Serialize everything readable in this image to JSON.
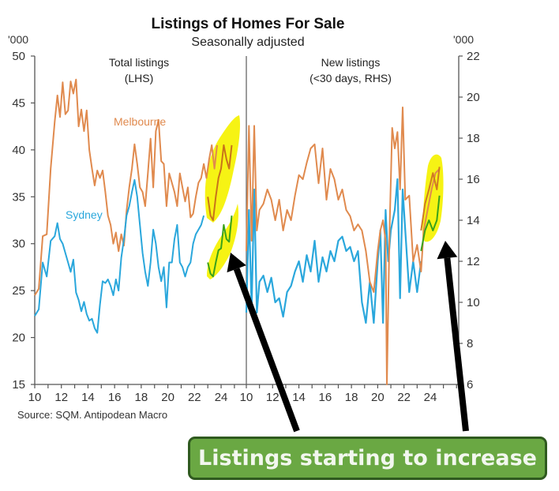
{
  "chart_data": {
    "type": "line",
    "title": "Listings of Homes For Sale",
    "subtitle": "Seasonally adjusted",
    "source": "Source: SQM. Antipodean Macro",
    "left_unit": "'000",
    "right_unit": "'000",
    "annotation": "Listings starting to increase",
    "colors": {
      "melbourne": "#e08a4e",
      "sydney": "#2aa7dc",
      "highlight_line": "#3aa21a",
      "highlight_fill": "#f5f200",
      "arrow": "#000000",
      "callout_bg": "#6aa843",
      "callout_border": "#2f5a1f"
    },
    "panels": [
      {
        "name": "Total listings",
        "label_line1": "Total listings",
        "label_line2": "(LHS)",
        "axis": "left",
        "ylim": [
          15,
          50
        ],
        "yticks": [
          15,
          20,
          25,
          30,
          35,
          40,
          45,
          50
        ],
        "xticks": [
          "10",
          "12",
          "14",
          "16",
          "18",
          "20",
          "22",
          "24"
        ],
        "series": [
          {
            "name": "Melbourne",
            "x": [
              2010.0,
              2010.3,
              2010.6,
              2010.9,
              2011.2,
              2011.5,
              2011.7,
              2011.9,
              2012.1,
              2012.3,
              2012.5,
              2012.7,
              2012.9,
              2013.1,
              2013.3,
              2013.5,
              2013.7,
              2013.9,
              2014.1,
              2014.3,
              2014.5,
              2014.7,
              2014.9,
              2015.1,
              2015.3,
              2015.5,
              2015.7,
              2015.9,
              2016.1,
              2016.3,
              2016.5,
              2016.7,
              2016.9,
              2017.1,
              2017.3,
              2017.5,
              2017.7,
              2017.9,
              2018.1,
              2018.3,
              2018.5,
              2018.7,
              2018.9,
              2019.1,
              2019.3,
              2019.5,
              2019.7,
              2019.9,
              2020.1,
              2020.3,
              2020.5,
              2020.7,
              2020.9,
              2021.1,
              2021.3,
              2021.5,
              2021.7,
              2021.9,
              2022.1,
              2022.3,
              2022.5,
              2022.7,
              2022.9,
              2023.1,
              2023.3,
              2023.5,
              2023.7,
              2023.9,
              2024.1,
              2024.3,
              2024.5,
              2024.7
            ],
            "values": [
              24.5,
              25.2,
              30.8,
              31.0,
              38.0,
              43.0,
              45.8,
              43.5,
              47.2,
              43.8,
              44.2,
              47.3,
              46.0,
              47.5,
              42.5,
              44.3,
              42.0,
              44.2,
              40.0,
              38.0,
              36.2,
              37.8,
              37.0,
              37.8,
              35.5,
              33.0,
              32.0,
              30.0,
              31.2,
              29.2,
              31.0,
              29.8,
              33.5,
              36.0,
              38.0,
              40.6,
              38.5,
              36.0,
              35.5,
              34.0,
              37.5,
              41.2,
              36.0,
              42.0,
              43.2,
              38.8,
              38.5,
              34.0,
              37.5,
              36.5,
              35.5,
              34.0,
              37.5,
              36.0,
              34.5,
              36.0,
              32.8,
              33.2,
              35.0,
              36.5,
              37.0,
              38.5,
              37.0,
              39.0,
              40.5,
              38.0,
              40.5,
              null,
              null,
              null,
              null,
              null
            ]
          },
          {
            "name": "Sydney",
            "x": [
              2010.0,
              2010.3,
              2010.6,
              2010.9,
              2011.2,
              2011.5,
              2011.7,
              2011.9,
              2012.1,
              2012.3,
              2012.5,
              2012.7,
              2012.9,
              2013.1,
              2013.3,
              2013.5,
              2013.7,
              2013.9,
              2014.1,
              2014.3,
              2014.5,
              2014.7,
              2014.9,
              2015.1,
              2015.3,
              2015.5,
              2015.7,
              2015.9,
              2016.1,
              2016.3,
              2016.5,
              2016.7,
              2016.9,
              2017.1,
              2017.3,
              2017.5,
              2017.7,
              2017.9,
              2018.1,
              2018.3,
              2018.5,
              2018.7,
              2018.9,
              2019.1,
              2019.3,
              2019.5,
              2019.7,
              2019.9,
              2020.1,
              2020.3,
              2020.5,
              2020.7,
              2020.9,
              2021.1,
              2021.3,
              2021.5,
              2021.7,
              2021.9,
              2022.1,
              2022.3,
              2022.5,
              2022.7,
              2022.9,
              2023.1,
              2023.3,
              2023.5,
              2023.7,
              2023.9,
              2024.1,
              2024.3,
              2024.5,
              2024.7
            ],
            "values": [
              22.3,
              23.0,
              28.0,
              26.5,
              30.3,
              30.8,
              32.2,
              30.5,
              30.0,
              29.0,
              28.0,
              27.0,
              28.3,
              24.8,
              24.0,
              22.8,
              23.8,
              22.5,
              21.8,
              22.0,
              21.0,
              20.5,
              23.5,
              26.0,
              25.8,
              26.2,
              25.5,
              24.5,
              26.2,
              25.0,
              28.5,
              30.5,
              33.0,
              34.0,
              35.5,
              36.8,
              35.0,
              32.0,
              29.0,
              27.0,
              25.5,
              28.0,
              31.5,
              30.0,
              27.5,
              26.0,
              27.5,
              23.2,
              28.0,
              28.0,
              30.5,
              32.0,
              28.0,
              27.5,
              26.5,
              27.5,
              28.0,
              30.0,
              31.0,
              31.5,
              32.0,
              33.0,
              null,
              null,
              null,
              null,
              null,
              null,
              null,
              null,
              null,
              null
            ]
          },
          {
            "name": "Melbourne (recent, highlighted)",
            "x": [
              2023.0,
              2023.2,
              2023.4,
              2023.6,
              2023.8,
              2024.0,
              2024.2,
              2024.4,
              2024.6,
              2024.8
            ],
            "values": [
              35.0,
              33.0,
              32.5,
              35.0,
              37.0,
              38.0,
              40.5,
              39.0,
              38.0,
              40.5
            ]
          },
          {
            "name": "Sydney (recent, highlighted)",
            "x": [
              2023.0,
              2023.2,
              2023.4,
              2023.6,
              2023.8,
              2024.0,
              2024.2,
              2024.4,
              2024.6,
              2024.8
            ],
            "values": [
              28.0,
              26.8,
              26.5,
              28.0,
              29.3,
              29.5,
              32.0,
              30.5,
              30.2,
              33.0
            ]
          }
        ]
      },
      {
        "name": "New listings",
        "label_line1": "New listings",
        "label_line2": "(<30 days, RHS)",
        "axis": "right",
        "ylim": [
          6,
          22
        ],
        "yticks": [
          6,
          8,
          10,
          12,
          14,
          16,
          18,
          20,
          22
        ],
        "xticks": [
          "10",
          "12",
          "14",
          "16",
          "18",
          "20",
          "22",
          "24"
        ],
        "series": [
          {
            "name": "Melbourne",
            "x": [
              2010.0,
              2010.2,
              2010.4,
              2010.6,
              2010.8,
              2011.0,
              2011.3,
              2011.6,
              2011.9,
              2012.2,
              2012.5,
              2012.8,
              2013.1,
              2013.4,
              2013.7,
              2014.0,
              2014.3,
              2014.6,
              2014.9,
              2015.2,
              2015.5,
              2015.8,
              2016.1,
              2016.4,
              2016.7,
              2017.0,
              2017.3,
              2017.6,
              2017.9,
              2018.2,
              2018.5,
              2018.8,
              2019.1,
              2019.4,
              2019.7,
              2020.0,
              2020.2,
              2020.4,
              2020.6,
              2020.7,
              2020.9,
              2021.1,
              2021.3,
              2021.5,
              2021.7,
              2021.9,
              2022.1,
              2022.4,
              2022.7,
              2023.0,
              2023.3,
              2023.5,
              2023.8,
              2024.1,
              2024.4,
              2024.7
            ],
            "values": [
              12.5,
              18.6,
              13.0,
              18.6,
              13.5,
              14.5,
              14.8,
              15.5,
              15.0,
              14.0,
              15.0,
              13.5,
              14.5,
              14.0,
              15.2,
              16.2,
              16.0,
              16.8,
              17.5,
              17.7,
              15.8,
              17.5,
              15.0,
              16.5,
              16.0,
              15.0,
              15.5,
              14.5,
              14.2,
              13.5,
              13.8,
              13.5,
              12.5,
              11.0,
              10.5,
              12.5,
              13.5,
              14.0,
              13.0,
              6.0,
              13.5,
              18.5,
              17.5,
              18.3,
              15.5,
              19.5,
              15.0,
              15.2,
              12.0,
              12.8,
              11.5,
              13.5,
              14.5,
              15.5,
              16.3,
              16.5
            ]
          },
          {
            "name": "Sydney",
            "x": [
              2010.0,
              2010.2,
              2010.4,
              2010.6,
              2010.8,
              2011.0,
              2011.3,
              2011.6,
              2011.9,
              2012.2,
              2012.5,
              2012.8,
              2013.1,
              2013.4,
              2013.7,
              2014.0,
              2014.3,
              2014.6,
              2014.9,
              2015.2,
              2015.5,
              2015.8,
              2016.1,
              2016.4,
              2016.7,
              2017.0,
              2017.3,
              2017.6,
              2017.9,
              2018.2,
              2018.5,
              2018.8,
              2019.1,
              2019.4,
              2019.7,
              2020.0,
              2020.2,
              2020.4,
              2020.6,
              2020.8,
              2021.0,
              2021.3,
              2021.5,
              2021.7,
              2021.9,
              2022.1,
              2022.4,
              2022.7,
              2023.0,
              2023.3
            ],
            "values": [
              9.5,
              14.5,
              9.7,
              15.5,
              9.5,
              11.0,
              11.3,
              10.5,
              11.2,
              10.0,
              10.2,
              9.3,
              10.5,
              10.8,
              11.5,
              12.0,
              11.0,
              12.3,
              11.5,
              13.0,
              11.0,
              12.2,
              11.5,
              12.5,
              12.0,
              13.0,
              13.2,
              12.5,
              12.7,
              12.0,
              12.5,
              10.0,
              9.0,
              11.0,
              9.0,
              12.0,
              13.5,
              9.0,
              14.5,
              12.0,
              13.5,
              14.5,
              16.0,
              10.2,
              15.5,
              13.5,
              10.5,
              12.0,
              10.5,
              12.0
            ]
          },
          {
            "name": "Melbourne (recent, highlighted)",
            "x": [
              2023.3,
              2023.6,
              2023.9,
              2024.2,
              2024.5,
              2024.7
            ],
            "values": [
              13.5,
              14.8,
              15.5,
              16.3,
              15.5,
              16.6
            ]
          },
          {
            "name": "Sydney (recent, highlighted)",
            "x": [
              2023.3,
              2023.6,
              2023.9,
              2024.2,
              2024.5,
              2024.7
            ],
            "values": [
              12.5,
              13.5,
              14.0,
              13.5,
              14.0,
              15.2
            ]
          }
        ]
      }
    ],
    "series_labels": {
      "melbourne": "Melbourne",
      "sydney": "Sydney"
    }
  }
}
